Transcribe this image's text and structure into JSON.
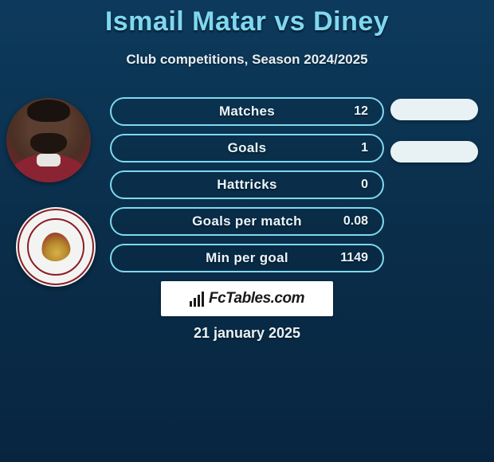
{
  "title": "Ismail Matar vs Diney",
  "subtitle": "Club competitions, Season 2024/2025",
  "date": "21 january 2025",
  "branding": "FcTables.com",
  "colors": {
    "accent": "#7fd8f0",
    "bg_top": "#0d3a5c",
    "bg_bottom": "#082540",
    "pill_fill": "#e8f2f4",
    "club_primary": "#8a1d28"
  },
  "stats": [
    {
      "label": "Matches",
      "value": "12"
    },
    {
      "label": "Goals",
      "value": "1"
    },
    {
      "label": "Hattricks",
      "value": "0"
    },
    {
      "label": "Goals per match",
      "value": "0.08"
    },
    {
      "label": "Min per goal",
      "value": "1149"
    }
  ],
  "right_pills_count": 2
}
